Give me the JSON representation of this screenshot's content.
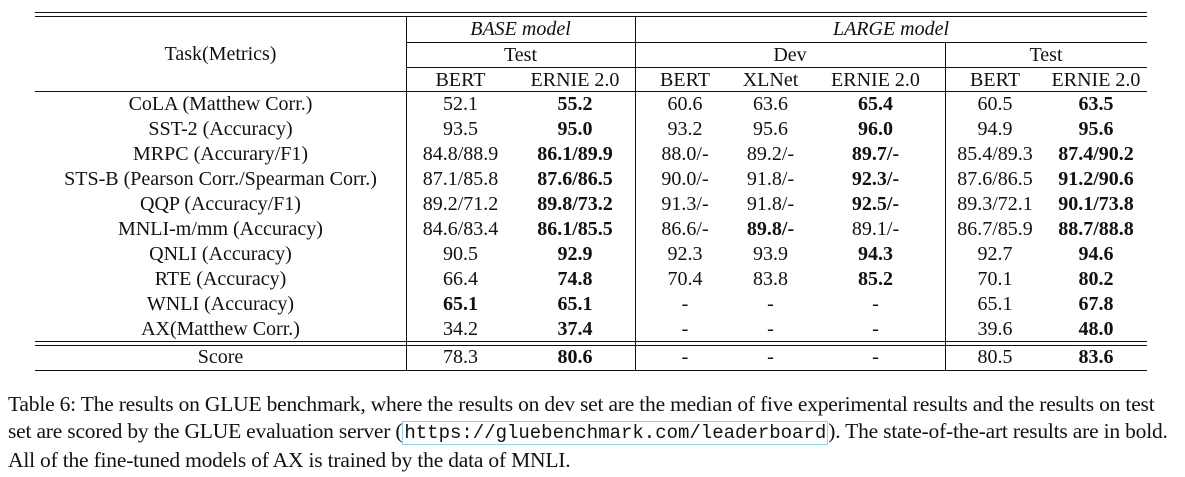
{
  "table": {
    "task_header": "Task(Metrics)",
    "groups": [
      {
        "name": "BASE model",
        "subgroups": [
          {
            "name": "Test",
            "models": [
              "BERT",
              "ERNIE 2.0"
            ]
          }
        ]
      },
      {
        "name": "LARGE model",
        "subgroups": [
          {
            "name": "Dev",
            "models": [
              "BERT",
              "XLNet",
              "ERNIE 2.0"
            ]
          },
          {
            "name": "Test",
            "models": [
              "BERT",
              "ERNIE 2.0"
            ]
          }
        ]
      }
    ],
    "rows": [
      {
        "task": "CoLA (Matthew Corr.)",
        "values": [
          "52.1",
          "55.2",
          "60.6",
          "63.6",
          "65.4",
          "60.5",
          "63.5"
        ],
        "bold": [
          1,
          4,
          6
        ]
      },
      {
        "task": "SST-2 (Accuracy)",
        "values": [
          "93.5",
          "95.0",
          "93.2",
          "95.6",
          "96.0",
          "94.9",
          "95.6"
        ],
        "bold": [
          1,
          4,
          6
        ]
      },
      {
        "task": "MRPC (Accurary/F1)",
        "values": [
          "84.8/88.9",
          "86.1/89.9",
          "88.0/-",
          "89.2/-",
          "89.7/-",
          "85.4/89.3",
          "87.4/90.2"
        ],
        "bold": [
          1,
          4,
          6
        ]
      },
      {
        "task": "STS-B (Pearson Corr./Spearman Corr.)",
        "values": [
          "87.1/85.8",
          "87.6/86.5",
          "90.0/-",
          "91.8/-",
          "92.3/-",
          "87.6/86.5",
          "91.2/90.6"
        ],
        "bold": [
          1,
          4,
          6
        ]
      },
      {
        "task": "QQP (Accuracy/F1)",
        "values": [
          "89.2/71.2",
          "89.8/73.2",
          "91.3/-",
          "91.8/-",
          "92.5/-",
          "89.3/72.1",
          "90.1/73.8"
        ],
        "bold": [
          1,
          4,
          6
        ]
      },
      {
        "task": "MNLI-m/mm (Accuracy)",
        "values": [
          "84.6/83.4",
          "86.1/85.5",
          "86.6/-",
          "89.8/-",
          "89.1/-",
          "86.7/85.9",
          "88.7/88.8"
        ],
        "bold": [
          1,
          3,
          6
        ]
      },
      {
        "task": "QNLI (Accuracy)",
        "values": [
          "90.5",
          "92.9",
          "92.3",
          "93.9",
          "94.3",
          "92.7",
          "94.6"
        ],
        "bold": [
          1,
          4,
          6
        ]
      },
      {
        "task": "RTE (Accuracy)",
        "values": [
          "66.4",
          "74.8",
          "70.4",
          "83.8",
          "85.2",
          "70.1",
          "80.2"
        ],
        "bold": [
          1,
          4,
          6
        ]
      },
      {
        "task": "WNLI (Accuracy)",
        "values": [
          "65.1",
          "65.1",
          "-",
          "-",
          "-",
          "65.1",
          "67.8"
        ],
        "bold": [
          0,
          1,
          6
        ]
      },
      {
        "task": "AX(Matthew Corr.)",
        "values": [
          "34.2",
          "37.4",
          "-",
          "-",
          "-",
          "39.6",
          "48.0"
        ],
        "bold": [
          1,
          6
        ]
      }
    ],
    "score_row": {
      "task": "Score",
      "values": [
        "78.3",
        "80.6",
        "-",
        "-",
        "-",
        "80.5",
        "83.6"
      ],
      "bold": [
        1,
        6
      ]
    }
  },
  "caption": {
    "before_url": "Table 6: The results on GLUE benchmark, where the results on dev set are the median of five experimental results and the results on test set are scored by the GLUE evaluation server (",
    "url": "https://gluebenchmark.com/leaderboard",
    "after_url": "). The state-of-the-art results are in bold. All of the fine-tuned models of AX is trained by the data of MNLI."
  }
}
